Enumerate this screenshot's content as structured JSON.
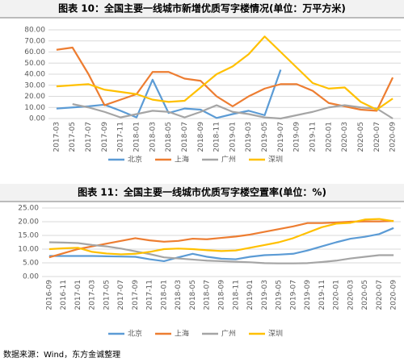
{
  "chart_data": [
    {
      "type": "line",
      "title": "图表 10：全国主要一线城市新增优质写字楼情况(单位：万平方米)",
      "categories": [
        "2017-03",
        "2017-05",
        "2017-07",
        "2017-09",
        "2017-11",
        "2018-01",
        "2018-03",
        "2018-05",
        "2018-07",
        "2018-09",
        "2018-11",
        "2019-01",
        "2019-03",
        "2019-05",
        "2019-07",
        "2019-09",
        "2019-11",
        "2020-01",
        "2020-03",
        "2020-05",
        "2020-07",
        "2020-09"
      ],
      "series": [
        {
          "name": "北京",
          "color": "#5b9bd5",
          "values": [
            9,
            10,
            11,
            12.5,
            7,
            1,
            35,
            5,
            9,
            8,
            0.5,
            4,
            7,
            3,
            44,
            null,
            null,
            null,
            null,
            null,
            null,
            null
          ]
        },
        {
          "name": "上海",
          "color": "#ed7d31",
          "values": [
            62,
            64,
            40,
            12,
            17,
            22,
            42,
            42,
            36,
            34,
            20,
            11,
            20,
            27,
            31,
            31,
            25,
            14,
            11,
            8,
            7,
            37
          ]
        },
        {
          "name": "广州",
          "color": "#a5a5a5",
          "values": [
            null,
            13,
            10,
            6,
            1,
            4,
            7,
            6,
            1,
            6,
            12,
            6,
            4,
            1,
            0,
            3,
            6,
            10,
            12,
            10,
            9,
            0
          ]
        },
        {
          "name": "深圳",
          "color": "#ffc000",
          "values": [
            29,
            30,
            31,
            26,
            24,
            22,
            17,
            15,
            16,
            28,
            40,
            47,
            58,
            74,
            60,
            46,
            32,
            27,
            28,
            15,
            8,
            18
          ]
        }
      ],
      "ylim": [
        0,
        80
      ],
      "yticks": [
        {
          "value": 0,
          "label": "0.00"
        },
        {
          "value": 10,
          "label": "10.00"
        },
        {
          "value": 20,
          "label": "20.00"
        },
        {
          "value": 30,
          "label": "30.00"
        },
        {
          "value": 40,
          "label": "40.00"
        },
        {
          "value": 50,
          "label": "50.00"
        },
        {
          "value": 60,
          "label": "60.00"
        },
        {
          "value": 70,
          "label": "70.00"
        },
        {
          "value": 80,
          "label": "80.00"
        }
      ],
      "grid": true,
      "legend": "bottom"
    },
    {
      "type": "line",
      "title": "图表 11：全国主要一线城市优质写字楼空置率(单位：%)",
      "categories": [
        "2016-09",
        "2016-11",
        "2017-01",
        "2017-03",
        "2017-05",
        "2017-07",
        "2017-09",
        "2017-11",
        "2018-01",
        "2018-03",
        "2018-05",
        "2018-07",
        "2018-09",
        "2018-11",
        "2019-01",
        "2019-03",
        "2019-05",
        "2019-07",
        "2019-09",
        "2019-11",
        "2020-01",
        "2020-03",
        "2020-05",
        "2020-07",
        "2020-09"
      ],
      "series": [
        {
          "name": "北京",
          "color": "#5b9bd5",
          "values": [
            7.5,
            7.5,
            7.5,
            7.5,
            7.4,
            7.3,
            7.2,
            6.3,
            5.6,
            7,
            8.3,
            7.2,
            6.5,
            6.3,
            7.2,
            7.8,
            8,
            8.3,
            9.5,
            11,
            12.5,
            13.8,
            14.5,
            15.5,
            17.7
          ]
        },
        {
          "name": "上海",
          "color": "#ed7d31",
          "values": [
            7,
            8.5,
            10,
            11,
            12,
            13,
            14,
            13.2,
            12.7,
            13,
            13.8,
            13.6,
            14.1,
            14.6,
            15.3,
            16.3,
            17.3,
            18.3,
            19.5,
            19.5,
            19.7,
            20,
            20.1,
            20.1,
            20.3
          ]
        },
        {
          "name": "广州",
          "color": "#a5a5a5",
          "values": [
            12.5,
            12.4,
            12.2,
            11.5,
            11,
            10.2,
            9.2,
            8.2,
            7,
            6.6,
            6.2,
            5.8,
            5.6,
            5.4,
            5.2,
            4.9,
            4.8,
            4.8,
            4.9,
            5.3,
            5.8,
            6.6,
            7.2,
            7.8,
            7.8
          ]
        },
        {
          "name": "深圳",
          "color": "#ffc000",
          "values": [
            10,
            10.3,
            10.5,
            9,
            8.4,
            8.1,
            8.3,
            9,
            10,
            10.2,
            10,
            9.6,
            9.3,
            9.5,
            10.5,
            11.5,
            12.5,
            14,
            16,
            18,
            19.3,
            19.6,
            20.8,
            21,
            20.2
          ]
        }
      ],
      "ylim": [
        0,
        25
      ],
      "yticks": [
        {
          "value": 0,
          "label": "0.00"
        },
        {
          "value": 5,
          "label": "5.00"
        },
        {
          "value": 10,
          "label": "10.00"
        },
        {
          "value": 15,
          "label": "15.00"
        },
        {
          "value": 20,
          "label": "20.00"
        },
        {
          "value": 25,
          "label": "25.00"
        }
      ],
      "grid": true,
      "legend": "bottom"
    }
  ],
  "source": "数据来源：Wind，东方金诚整理"
}
